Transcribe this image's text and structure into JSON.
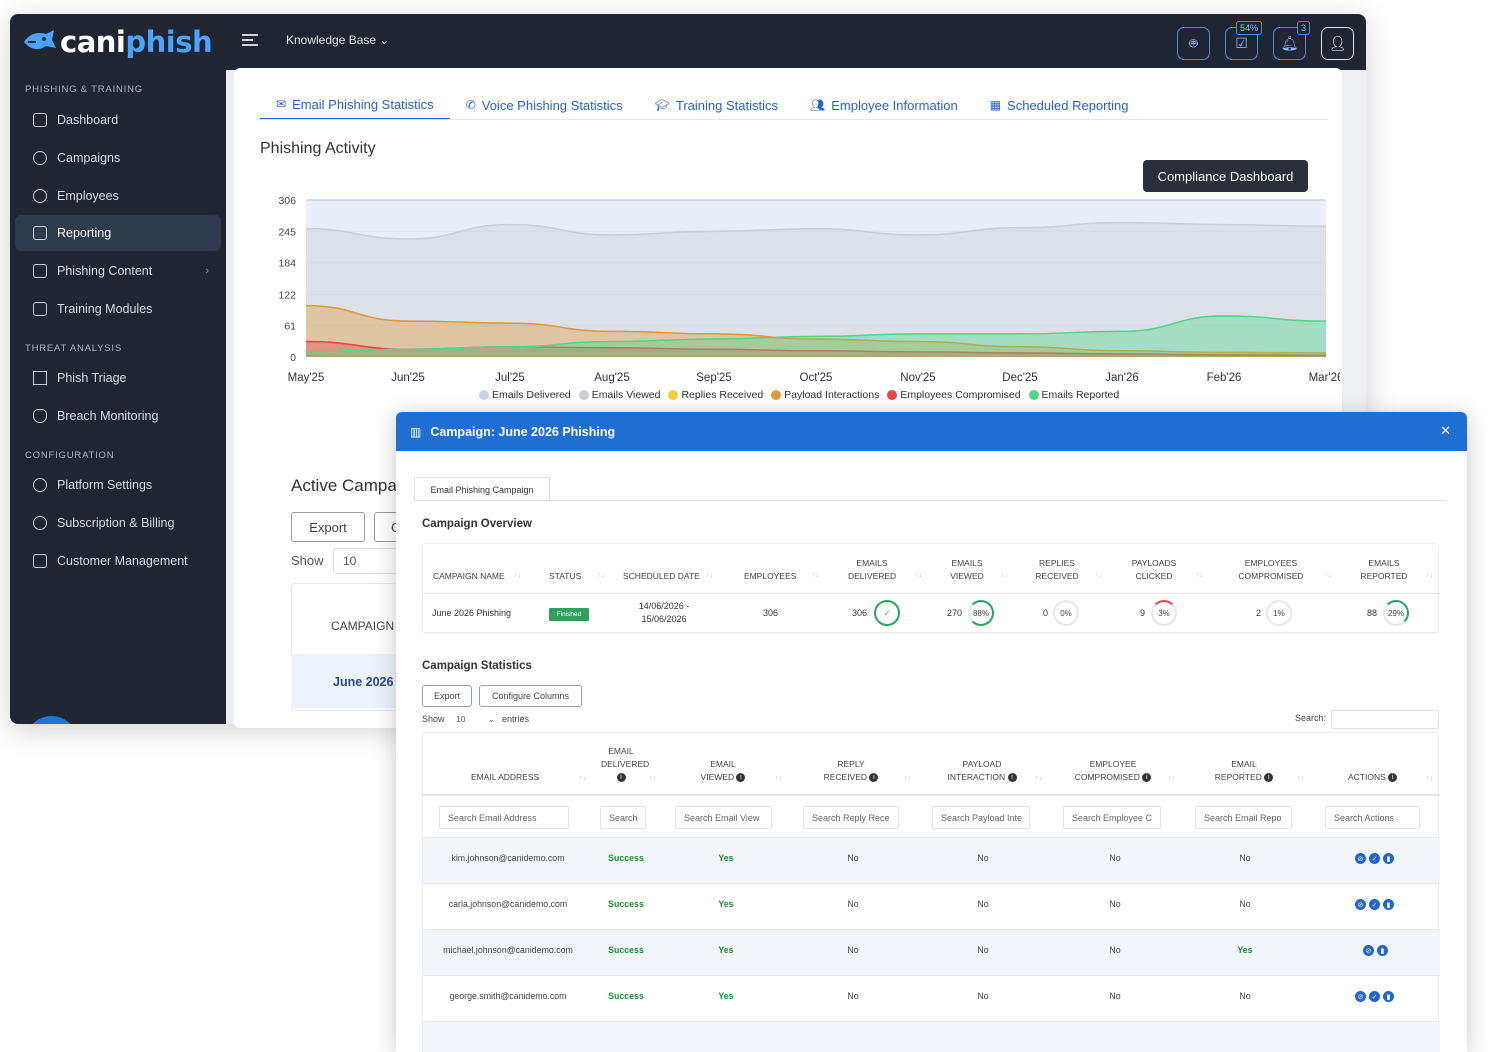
{
  "app": {
    "logo_text_1": "cani",
    "logo_text_2": "phish",
    "nav_dropdown": "Knowledge Base",
    "tasks_badge": "54%",
    "notifications_badge": "3"
  },
  "sidebar": {
    "section_1": "PHISHING & TRAINING",
    "section_2": "THREAT ANALYSIS",
    "section_3": "CONFIGURATION",
    "items": [
      {
        "label": "Dashboard"
      },
      {
        "label": "Campaigns"
      },
      {
        "label": "Employees"
      },
      {
        "label": "Reporting"
      },
      {
        "label": "Phishing Content"
      },
      {
        "label": "Training Modules"
      },
      {
        "label": "Phish Triage"
      },
      {
        "label": "Breach Monitoring"
      },
      {
        "label": "Platform Settings"
      },
      {
        "label": "Subscription & Billing"
      },
      {
        "label": "Customer Management"
      }
    ],
    "active": "Reporting"
  },
  "tabs": [
    {
      "label": "Email Phishing Statistics",
      "icon": "envelope-icon"
    },
    {
      "label": "Voice Phishing Statistics",
      "icon": "phone-icon"
    },
    {
      "label": "Training Statistics",
      "icon": "graduation-cap-icon"
    },
    {
      "label": "Employee Information",
      "icon": "users-icon"
    },
    {
      "label": "Scheduled Reporting",
      "icon": "calendar-icon"
    }
  ],
  "phishing_activity": {
    "title": "Phishing Activity",
    "compliance_button": "Compliance Dashboard"
  },
  "chart_data": {
    "type": "area",
    "title": "Phishing Activity",
    "categories": [
      "May'25",
      "Jun'25",
      "Jul'25",
      "Aug'25",
      "Sep'25",
      "Oct'25",
      "Nov'25",
      "Dec'25",
      "Jan'26",
      "Feb'26",
      "Mar'26"
    ],
    "y_ticks": [
      "306",
      "245",
      "184",
      "122",
      "61",
      "0"
    ],
    "ylim": [
      0,
      306
    ],
    "grid": true,
    "legend_position": "bottom",
    "series": [
      {
        "name": "Emails Delivered",
        "color": "#c8d3ea",
        "values": [
          306,
          306,
          306,
          306,
          306,
          306,
          306,
          306,
          306,
          306,
          306
        ]
      },
      {
        "name": "Emails Viewed",
        "color": "#cbd0d8",
        "values": [
          250,
          230,
          258,
          238,
          245,
          250,
          238,
          252,
          262,
          258,
          255
        ]
      },
      {
        "name": "Replies Received",
        "color": "#f2d43a",
        "values": [
          3,
          3,
          3,
          3,
          3,
          3,
          3,
          3,
          3,
          3,
          3
        ]
      },
      {
        "name": "Payload Interactions",
        "color": "#e09a3a",
        "values": [
          100,
          70,
          66,
          50,
          45,
          35,
          30,
          20,
          12,
          9,
          8
        ]
      },
      {
        "name": "Employees Compromised",
        "color": "#e84848",
        "values": [
          30,
          15,
          20,
          18,
          15,
          12,
          10,
          8,
          6,
          4,
          3
        ]
      },
      {
        "name": "Emails Reported",
        "color": "#52d68c",
        "values": [
          10,
          15,
          20,
          30,
          35,
          40,
          45,
          45,
          50,
          80,
          70
        ]
      }
    ]
  },
  "background_table": {
    "title": "Active Campa",
    "export_label": "Export",
    "button2_label": "C",
    "show_label": "Show",
    "show_value": "10",
    "col_header": "CAMPAIGN",
    "first_row": "June 2026"
  },
  "modal": {
    "title": "Campaign: June 2026 Phishing",
    "tab_label": "Email Phishing Campaign",
    "overview_heading": "Campaign Overview",
    "overview_headers": [
      "CAMPAIGN NAME",
      "STATUS",
      "SCHEDULED DATE",
      "EMPLOYEES",
      "EMAILS DELIVERED",
      "EMAILS VIEWED",
      "REPLIES RECEIVED",
      "PAYLOADS CLICKED",
      "EMPLOYEES COMPROMISED",
      "EMAILS REPORTED"
    ],
    "overview_row": {
      "campaign_name": "June 2026 Phishing",
      "status": "Finished",
      "date_1": "14/06/2026 -",
      "date_2": "15/06/2026",
      "employees": "306",
      "delivered": "306",
      "delivered_pct": "✓",
      "viewed": "270",
      "viewed_pct": "88%",
      "replies": "0",
      "replies_pct": "0%",
      "clicked": "9",
      "clicked_pct": "3%",
      "compromised": "2",
      "compromised_pct": "1%",
      "reported": "88",
      "reported_pct": "29%"
    },
    "stats_heading": "Campaign Statistics",
    "export_label": "Export",
    "configure_label": "Configure Columns",
    "show_label": "Show",
    "show_value": "10",
    "entries_label": "entries",
    "search_label": "Search:",
    "table_headers": [
      "EMAIL ADDRESS",
      "EMAIL DELIVERED",
      "EMAIL VIEWED",
      "REPLY RECEIVED",
      "PAYLOAD INTERACTION",
      "EMPLOYEE COMPROMISED",
      "EMAIL REPORTED",
      "ACTIONS"
    ],
    "filter_placeholders": [
      "Search Email Address",
      "Search",
      "Search Email View",
      "Search Reply Rece",
      "Search Payload Inte",
      "Search Employee C",
      "Search Email Repo",
      "Search Actions"
    ],
    "rows": [
      {
        "email": "kim.johnson@canidemo.com",
        "delivered": "Success",
        "viewed": "Yes",
        "reply": "No",
        "payload": "No",
        "compromised": "No",
        "reported": "No"
      },
      {
        "email": "carla.johnson@canidemo.com",
        "delivered": "Success",
        "viewed": "Yes",
        "reply": "No",
        "payload": "No",
        "compromised": "No",
        "reported": "No"
      },
      {
        "email": "michael.johnson@canidemo.com",
        "delivered": "Success",
        "viewed": "Yes",
        "reply": "No",
        "payload": "No",
        "compromised": "No",
        "reported": "Yes"
      },
      {
        "email": "george.smith@canidemo.com",
        "delivered": "Success",
        "viewed": "Yes",
        "reply": "No",
        "payload": "No",
        "compromised": "No",
        "reported": "No"
      }
    ]
  }
}
